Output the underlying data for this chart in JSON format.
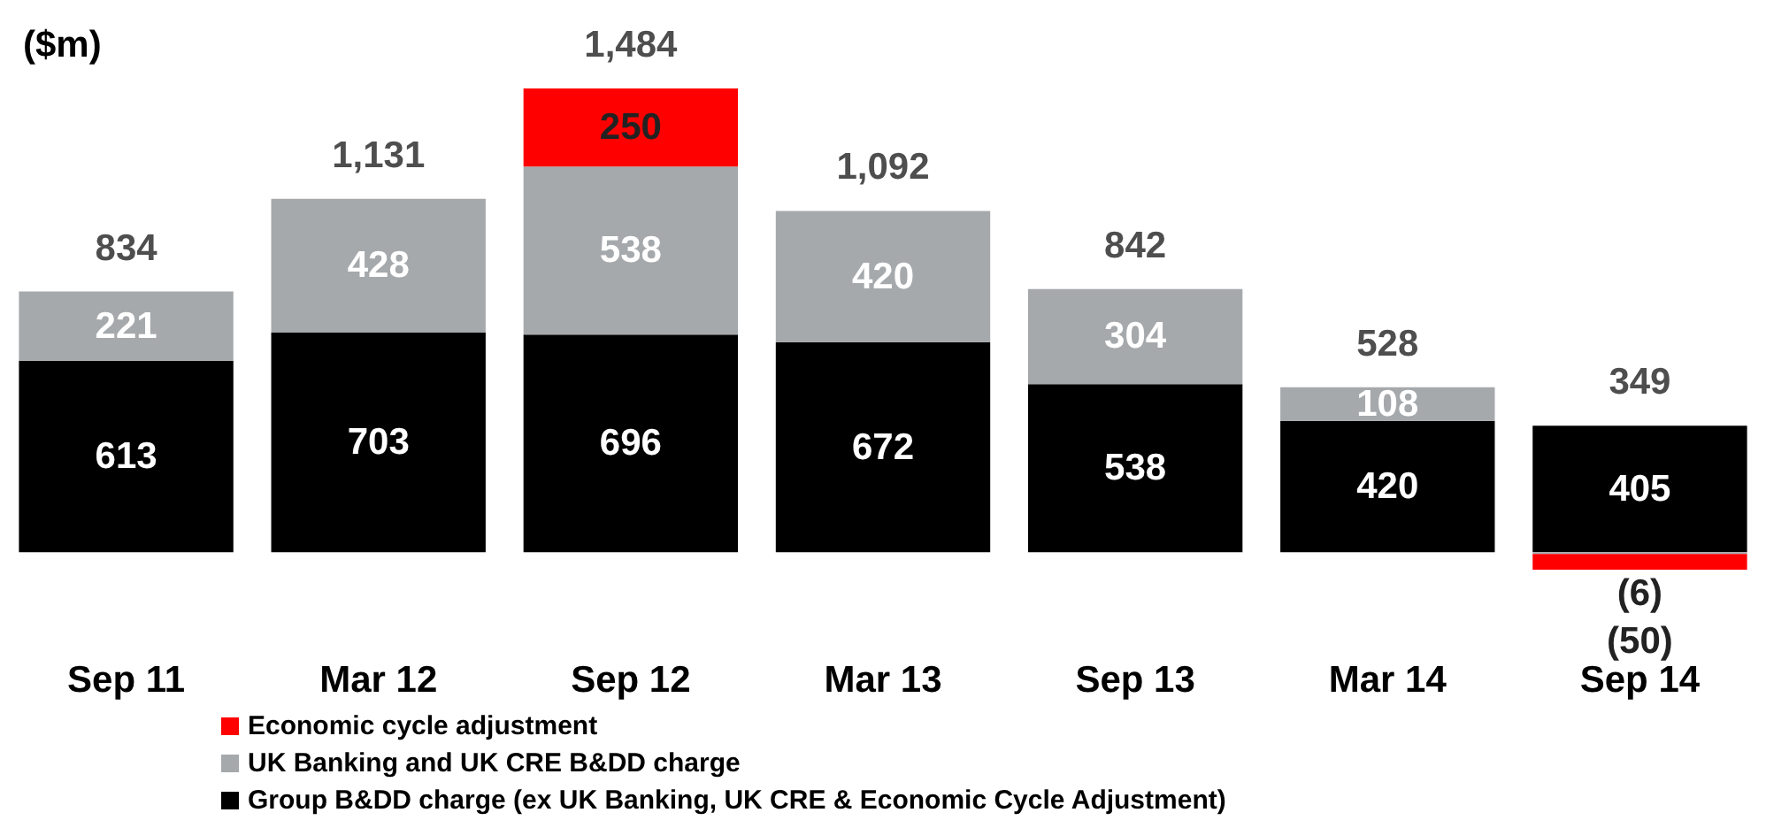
{
  "chart_data": {
    "type": "bar",
    "title": "($m)",
    "stacked": true,
    "categories": [
      "Sep 11",
      "Mar 12",
      "Sep 12",
      "Mar 13",
      "Sep 13",
      "Mar 14",
      "Sep 14"
    ],
    "series": [
      {
        "name": "Group B&DD charge (ex UK Banking, UK CRE & Economic Cycle Adjustment)",
        "color": "#000000",
        "values": [
          613,
          703,
          696,
          672,
          538,
          420,
          405
        ],
        "value_labels": [
          "613",
          "703",
          "696",
          "672",
          "538",
          "420",
          "405"
        ]
      },
      {
        "name": "UK Banking and UK CRE B&DD charge",
        "color": "#a6a9ac",
        "values": [
          221,
          428,
          538,
          420,
          304,
          108,
          -6
        ],
        "value_labels": [
          "221",
          "428",
          "538",
          "420",
          "304",
          "108",
          "(6)"
        ]
      },
      {
        "name": "Economic cycle adjustment",
        "color": "#ff0000",
        "values": [
          null,
          null,
          250,
          null,
          null,
          null,
          -50
        ],
        "value_labels": [
          null,
          null,
          "250",
          null,
          null,
          null,
          "(50)"
        ]
      }
    ],
    "totals": [
      "834",
      "1,131",
      "1,484",
      "1,092",
      "842",
      "528",
      "349"
    ],
    "legend": "bottom left"
  }
}
